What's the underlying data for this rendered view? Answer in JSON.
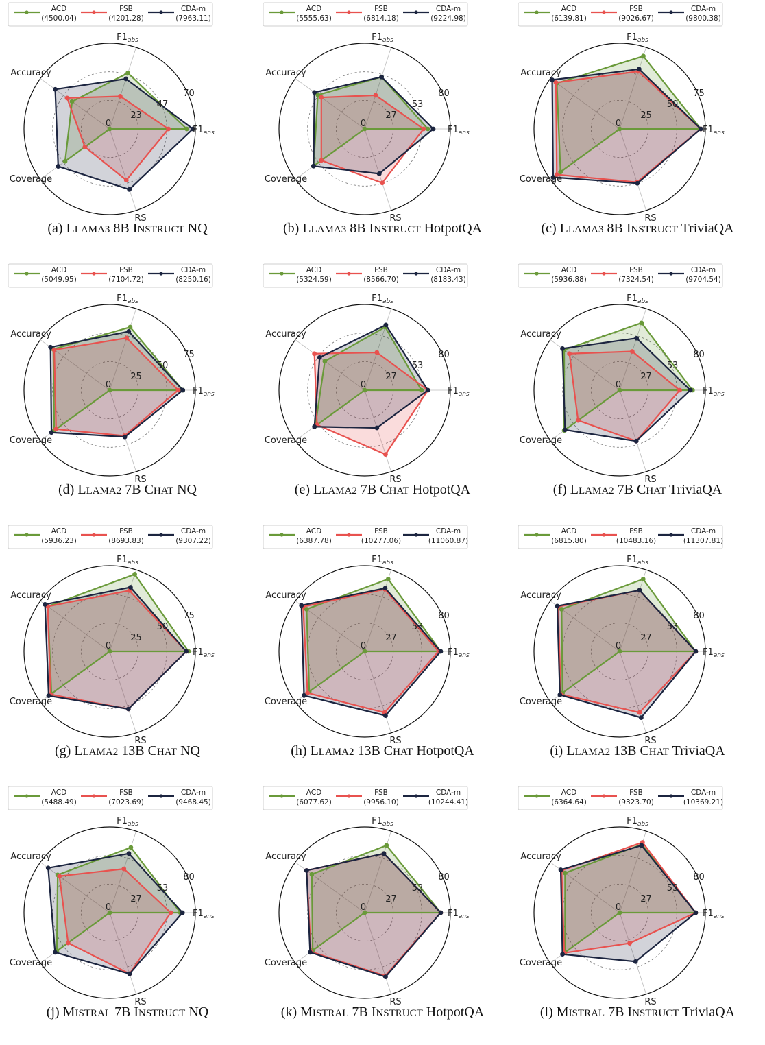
{
  "colors": {
    "ACD": "#6a9a3a",
    "FSB": "#e8524f",
    "CDA-m": "#1c2540"
  },
  "axis_labels": [
    "F1",
    "Accuracy",
    "Coverage",
    "RS",
    "F1"
  ],
  "axis_subscripts": [
    "ans",
    "",
    "",
    "",
    "abs"
  ],
  "chart_data": [
    {
      "type": "radar",
      "caption": "(a) LLAMA3 8B INSTRUCT NQ",
      "ticks": [
        "0",
        "23",
        "47",
        "70"
      ],
      "rmax": 70,
      "series": [
        {
          "name": "ACD",
          "legend_value": "(4500.04)",
          "values": [
            63,
            48,
            38,
            45,
            0
          ]
        },
        {
          "name": "FSB",
          "legend_value": "(4201.28)",
          "values": [
            48,
            28,
            43,
            25,
            44
          ]
        },
        {
          "name": "CDA-m",
          "legend_value": "(7963.11)",
          "values": [
            68,
            43,
            55,
            52,
            52
          ]
        }
      ]
    },
    {
      "type": "radar",
      "caption": "(b) LLAMA3 8B INSTRUCT HotpotQA",
      "ticks": [
        "0",
        "27",
        "53",
        "80"
      ],
      "rmax": 80,
      "series": [
        {
          "name": "ACD",
          "legend_value": "(5555.63)",
          "values": [
            59,
            51,
            54,
            59,
            0
          ]
        },
        {
          "name": "FSB",
          "legend_value": "(6814.18)",
          "values": [
            55,
            33,
            50,
            50,
            53
          ]
        },
        {
          "name": "CDA-m",
          "legend_value": "(9224.98)",
          "values": [
            64,
            51,
            58,
            59,
            44
          ]
        }
      ]
    },
    {
      "type": "radar",
      "caption": "(c) LLAMA3 8B INSTRUCT TriviaQA",
      "ticks": [
        "0",
        "25",
        "50",
        "75"
      ],
      "rmax": 75,
      "series": [
        {
          "name": "ACD",
          "legend_value": "(6139.81)",
          "values": [
            71,
            67,
            68,
            64,
            0
          ]
        },
        {
          "name": "FSB",
          "legend_value": "(9026.67)",
          "values": [
            71,
            53,
            69,
            68,
            49
          ]
        },
        {
          "name": "CDA-m",
          "legend_value": "(9800.38)",
          "values": [
            71,
            55,
            73,
            72,
            50
          ]
        }
      ]
    },
    {
      "type": "radar",
      "caption": "(d) LLAMA2 7B CHAT NQ",
      "ticks": [
        "0",
        "25",
        "50",
        "75"
      ],
      "rmax": 75,
      "series": [
        {
          "name": "ACD",
          "legend_value": "(5049.95)",
          "values": [
            64,
            58,
            61,
            60,
            0
          ]
        },
        {
          "name": "FSB",
          "legend_value": "(7104.72)",
          "values": [
            60,
            48,
            60,
            58,
            42
          ]
        },
        {
          "name": "CDA-m",
          "legend_value": "(8250.16)",
          "values": [
            64,
            54,
            64,
            63,
            43
          ]
        }
      ]
    },
    {
      "type": "radar",
      "caption": "(e) LLAMA2 7B CHAT HotpotQA",
      "ticks": [
        "0",
        "27",
        "53",
        "80"
      ],
      "rmax": 80,
      "series": [
        {
          "name": "ACD",
          "legend_value": "(5324.59)",
          "values": [
            53,
            62,
            46,
            57,
            0
          ]
        },
        {
          "name": "FSB",
          "legend_value": "(8566.70)",
          "values": [
            59,
            37,
            58,
            55,
            63
          ]
        },
        {
          "name": "CDA-m",
          "legend_value": "(8183.43)",
          "values": [
            59,
            64,
            52,
            58,
            37
          ]
        }
      ]
    },
    {
      "type": "radar",
      "caption": "(f) LLAMA2 7B CHAT TriviaQA",
      "ticks": [
        "0",
        "27",
        "53",
        "80"
      ],
      "rmax": 80,
      "series": [
        {
          "name": "ACD",
          "legend_value": "(5936.88)",
          "values": [
            68,
            66,
            64,
            64,
            0
          ]
        },
        {
          "name": "FSB",
          "legend_value": "(7324.54)",
          "values": [
            56,
            38,
            58,
            48,
            50
          ]
        },
        {
          "name": "CDA-m",
          "legend_value": "(9704.54)",
          "values": [
            66,
            51,
            66,
            63,
            50
          ]
        }
      ]
    },
    {
      "type": "radar",
      "caption": "(g) LLAMA2 13B CHAT NQ",
      "ticks": [
        "0",
        "25",
        "50",
        "75"
      ],
      "rmax": 75,
      "series": [
        {
          "name": "ACD",
          "legend_value": "(5936.23)",
          "values": [
            69,
            71,
            67,
            63,
            0
          ]
        },
        {
          "name": "FSB",
          "legend_value": "(8693.83)",
          "values": [
            67,
            56,
            67,
            64,
            53
          ]
        },
        {
          "name": "CDA-m",
          "legend_value": "(9307.22)",
          "values": [
            67,
            59,
            70,
            66,
            53
          ]
        }
      ]
    },
    {
      "type": "radar",
      "caption": "(h) LLAMA2 13B CHAT HotpotQA",
      "ticks": [
        "0",
        "27",
        "53",
        "80"
      ],
      "rmax": 80,
      "series": [
        {
          "name": "ACD",
          "legend_value": "(6387.78)",
          "values": [
            71,
            71,
            67,
            64,
            0
          ]
        },
        {
          "name": "FSB",
          "legend_value": "(10277.06)",
          "values": [
            69,
            61,
            71,
            66,
            60
          ]
        },
        {
          "name": "CDA-m",
          "legend_value": "(11060.87)",
          "values": [
            71,
            62,
            73,
            70,
            63
          ]
        }
      ]
    },
    {
      "type": "radar",
      "caption": "(i) LLAMA2 13B CHAT TriviaQA",
      "ticks": [
        "0",
        "27",
        "53",
        "80"
      ],
      "rmax": 80,
      "series": [
        {
          "name": "ACD",
          "legend_value": "(6815.80)",
          "values": [
            71,
            71,
            67,
            66,
            0
          ]
        },
        {
          "name": "FSB",
          "legend_value": "(10483.16)",
          "values": [
            71,
            60,
            71,
            68,
            60
          ]
        },
        {
          "name": "CDA-m",
          "legend_value": "(11307.81)",
          "values": [
            71,
            60,
            72,
            69,
            65
          ]
        }
      ]
    },
    {
      "type": "radar",
      "caption": "(j) MISTRAL 7B INSTRUCT NQ",
      "ticks": [
        "0",
        "27",
        "53",
        "80"
      ],
      "rmax": 80,
      "series": [
        {
          "name": "ACD",
          "legend_value": "(5488.49)",
          "values": [
            66,
            64,
            60,
            61,
            0
          ]
        },
        {
          "name": "FSB",
          "legend_value": "(7023.69)",
          "values": [
            57,
            43,
            58,
            48,
            60
          ]
        },
        {
          "name": "CDA-m",
          "legend_value": "(9468.45)",
          "values": [
            68,
            58,
            71,
            63,
            60
          ]
        }
      ]
    },
    {
      "type": "radar",
      "caption": "(k) MISTRAL 7B INSTRUCT HotpotQA",
      "ticks": [
        "0",
        "27",
        "53",
        "80"
      ],
      "rmax": 80,
      "series": [
        {
          "name": "ACD",
          "legend_value": "(6077.62)",
          "values": [
            71,
            66,
            61,
            60,
            0
          ]
        },
        {
          "name": "FSB",
          "legend_value": "(9956.10)",
          "values": [
            71,
            58,
            67,
            62,
            62
          ]
        },
        {
          "name": "CDA-m",
          "legend_value": "(10244.41)",
          "values": [
            71,
            58,
            67,
            63,
            63
          ]
        }
      ]
    },
    {
      "type": "radar",
      "caption": "(l) MISTRAL 7B INSTRUCT TriviaQA",
      "ticks": [
        "0",
        "27",
        "53",
        "80"
      ],
      "rmax": 80,
      "series": [
        {
          "name": "ACD",
          "legend_value": "(6364.64)",
          "values": [
            71,
            67,
            63,
            63,
            0
          ]
        },
        {
          "name": "FSB",
          "legend_value": "(9323.70)",
          "values": [
            71,
            69,
            67,
            64,
            30
          ]
        },
        {
          "name": "CDA-m",
          "legend_value": "(10369.21)",
          "values": [
            71,
            66,
            68,
            66,
            48
          ]
        }
      ]
    }
  ]
}
